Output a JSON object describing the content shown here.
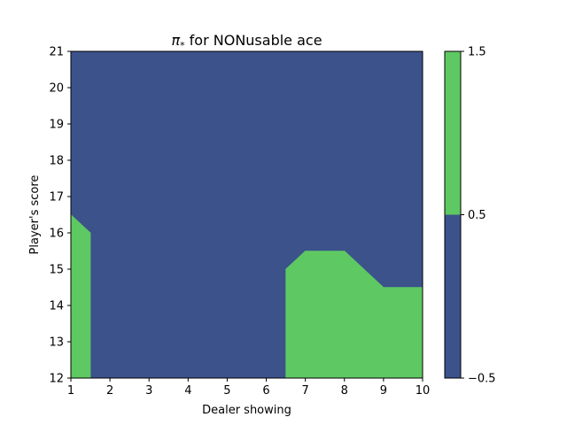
{
  "chart_data": {
    "type": "contourf",
    "title_symbol": "π",
    "title_subscript": "*",
    "title_rest": " for NONusable ace",
    "xlabel": "Dealer showing",
    "ylabel": "Player's score",
    "xlim": [
      1,
      10
    ],
    "ylim": [
      12,
      21
    ],
    "x_ticks": [
      1,
      2,
      3,
      4,
      5,
      6,
      7,
      8,
      9,
      10
    ],
    "y_ticks": [
      12,
      13,
      14,
      15,
      16,
      17,
      18,
      19,
      20,
      21
    ],
    "x": [
      1,
      2,
      3,
      4,
      5,
      6,
      7,
      8,
      9,
      10
    ],
    "y": [
      12,
      13,
      14,
      15,
      16,
      17,
      18,
      19,
      20,
      21
    ],
    "z": [
      [
        1,
        0,
        0,
        0,
        0,
        0,
        1,
        1,
        1,
        1
      ],
      [
        1,
        0,
        0,
        0,
        0,
        0,
        1,
        1,
        1,
        1
      ],
      [
        1,
        0,
        0,
        0,
        0,
        0,
        1,
        1,
        1,
        1
      ],
      [
        1,
        0,
        0,
        0,
        0,
        0,
        1,
        1,
        0,
        0
      ],
      [
        1,
        0,
        0,
        0,
        0,
        0,
        0,
        0,
        0,
        0
      ],
      [
        0,
        0,
        0,
        0,
        0,
        0,
        0,
        0,
        0,
        0
      ],
      [
        0,
        0,
        0,
        0,
        0,
        0,
        0,
        0,
        0,
        0
      ],
      [
        0,
        0,
        0,
        0,
        0,
        0,
        0,
        0,
        0,
        0
      ],
      [
        0,
        0,
        0,
        0,
        0,
        0,
        0,
        0,
        0,
        0
      ],
      [
        0,
        0,
        0,
        0,
        0,
        0,
        0,
        0,
        0,
        0
      ]
    ],
    "levels": [
      -0.5,
      0.5,
      1.5
    ],
    "level_labels": [
      "−0.5",
      "0.5",
      "1.5"
    ],
    "colors": [
      "#3b528b",
      "#5ec962"
    ],
    "grid": false
  }
}
